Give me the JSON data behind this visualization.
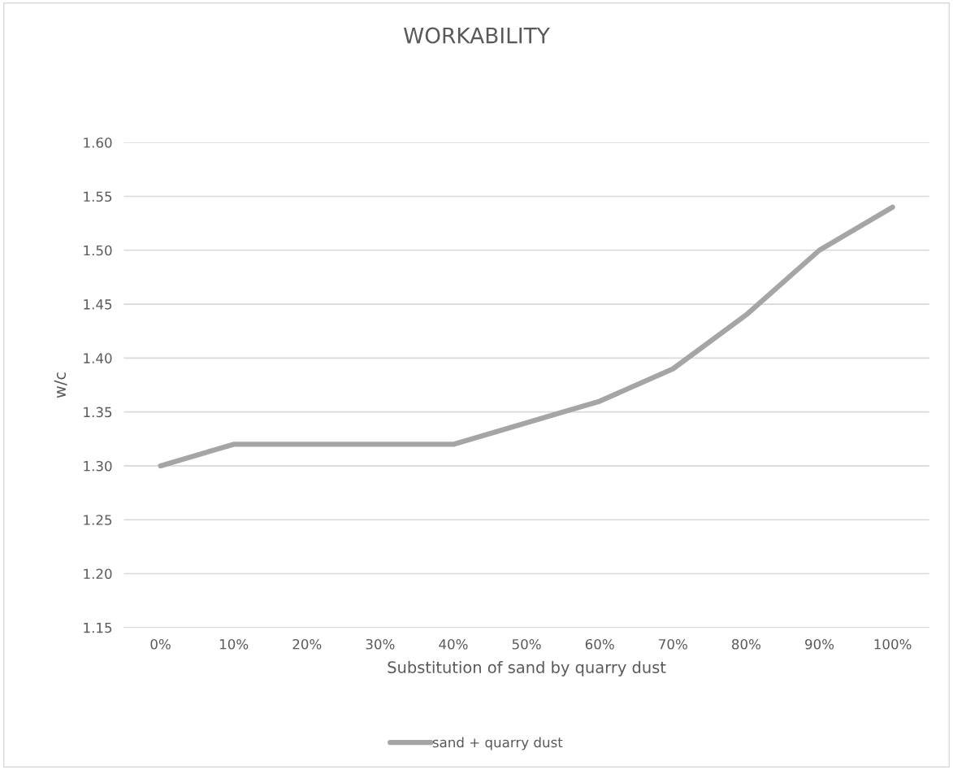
{
  "chart_data": {
    "type": "line",
    "title": "WORKABILITY",
    "xlabel": "Substitution of sand by quarry dust",
    "ylabel": "w/c",
    "categories": [
      "0%",
      "10%",
      "20%",
      "30%",
      "40%",
      "50%",
      "60%",
      "70%",
      "80%",
      "90%",
      "100%"
    ],
    "series": [
      {
        "name": "sand + quarry dust",
        "color": "#a5a5a5",
        "values": [
          1.3,
          1.32,
          1.32,
          1.32,
          1.32,
          1.34,
          1.36,
          1.39,
          1.44,
          1.5,
          1.54
        ]
      }
    ],
    "ylim": [
      1.15,
      1.6
    ],
    "yticks": [
      {
        "value": 1.15,
        "label": "1.15"
      },
      {
        "value": 1.2,
        "label": "1.20"
      },
      {
        "value": 1.25,
        "label": "1.25"
      },
      {
        "value": 1.3,
        "label": "1.30"
      },
      {
        "value": 1.35,
        "label": "1.35"
      },
      {
        "value": 1.4,
        "label": "1.40"
      },
      {
        "value": 1.45,
        "label": "1.45"
      },
      {
        "value": 1.5,
        "label": "1.50"
      },
      {
        "value": 1.55,
        "label": "1.55"
      },
      {
        "value": 1.6,
        "label": "1.60"
      }
    ],
    "grid": "y",
    "legend": "bottom",
    "marker": "none",
    "line_style": "solid"
  }
}
